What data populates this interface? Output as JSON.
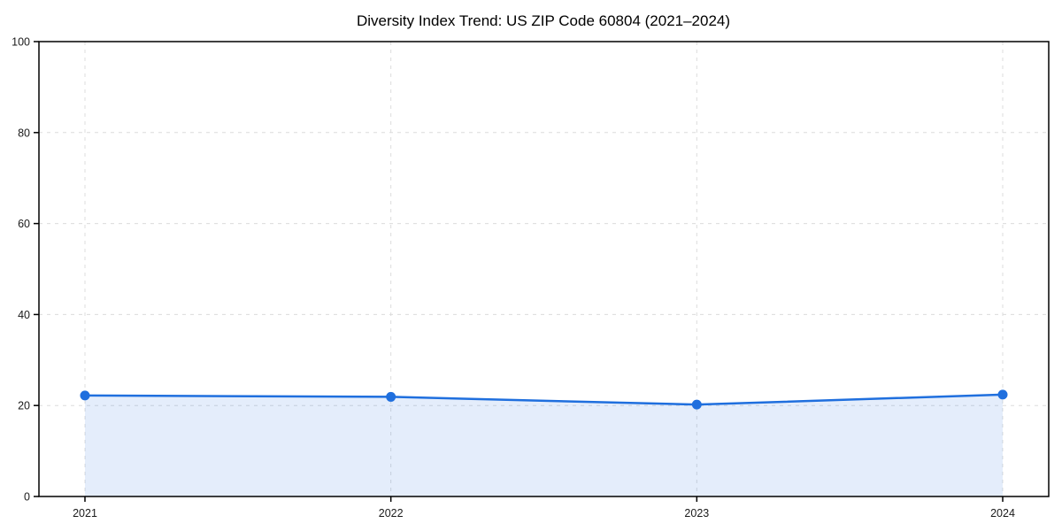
{
  "title": "Diversity Index Trend: US ZIP Code 60804 (2021–2024)",
  "colors": {
    "line": "#1f6fde",
    "fill_opacity": 0.12,
    "grid": "#dcdcdc",
    "spine": "#000000",
    "text": "#1a1a1a",
    "background": "#ffffff"
  },
  "chart_data": {
    "type": "line",
    "title": "Diversity Index Trend: US ZIP Code 60804 (2021–2024)",
    "x": [
      "2021",
      "2022",
      "2023",
      "2024"
    ],
    "series": [
      {
        "name": "Diversity Index",
        "values": [
          22.2,
          21.9,
          20.2,
          22.4
        ]
      }
    ],
    "xlabel": "",
    "ylabel": "",
    "ylim": [
      0,
      100
    ],
    "yticks": [
      0,
      20,
      40,
      60,
      80,
      100
    ],
    "grid": true,
    "grid_style": "dashed",
    "legend": "none",
    "marker": "circle",
    "area_fill": true
  }
}
